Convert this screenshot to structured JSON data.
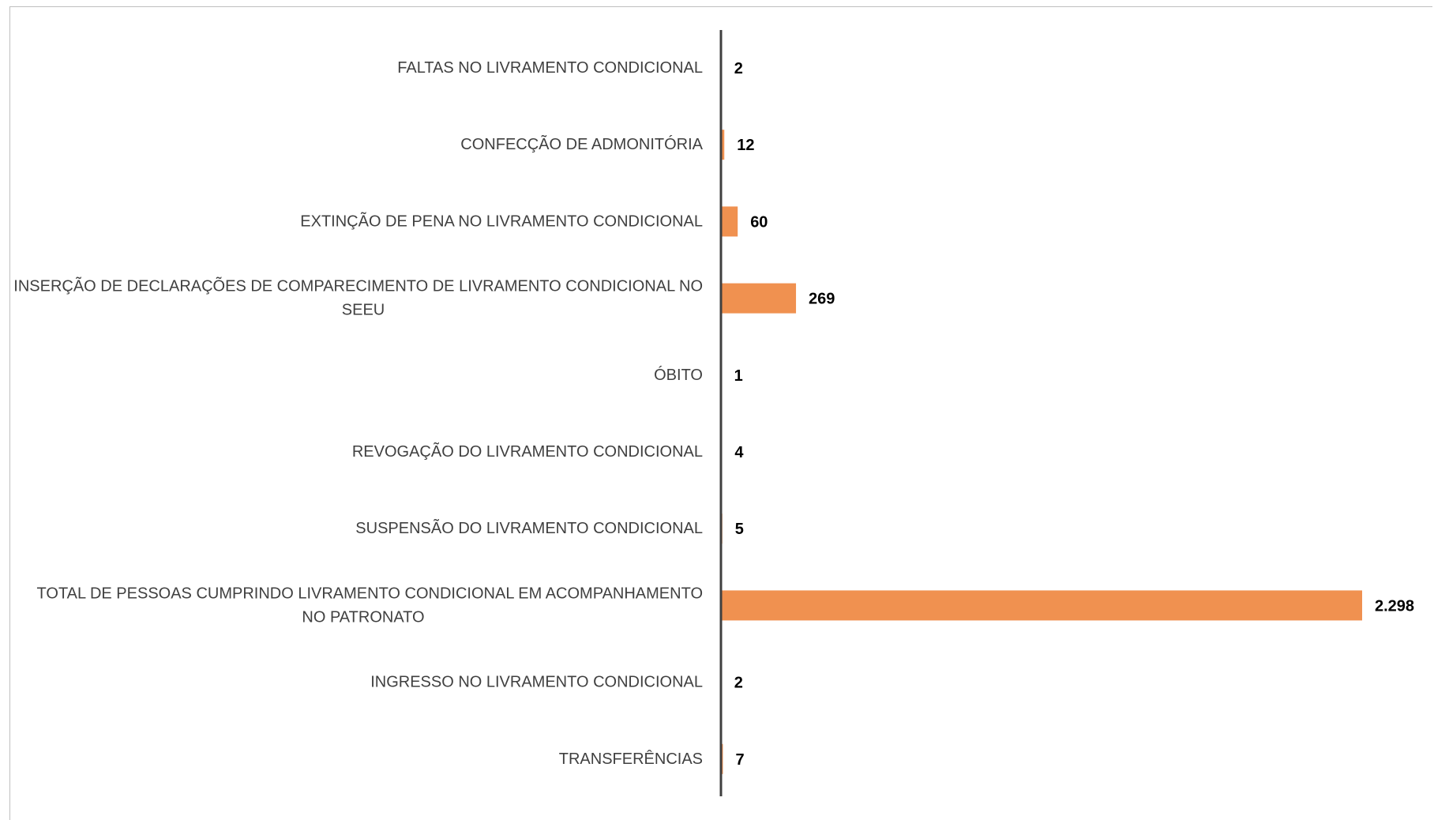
{
  "chart_data": {
    "type": "bar",
    "orientation": "horizontal",
    "categories": [
      [
        "FALTAS NO LIVRAMENTO CONDICIONAL"
      ],
      [
        "CONFECÇÃO DE ADMONITÓRIA"
      ],
      [
        "EXTINÇÃO DE PENA NO LIVRAMENTO CONDICIONAL"
      ],
      [
        "INSERÇÃO DE DECLARAÇÕES DE COMPARECIMENTO DE LIVRAMENTO CONDICIONAL NO",
        "SEEU"
      ],
      [
        "ÓBITO"
      ],
      [
        "REVOGAÇÃO DO LIVRAMENTO CONDICIONAL"
      ],
      [
        "SUSPENSÃO DO LIVRAMENTO CONDICIONAL"
      ],
      [
        "TOTAL DE PESSOAS CUMPRINDO LIVRAMENTO CONDICIONAL EM ACOMPANHAMENTO",
        "NO PATRONATO"
      ],
      [
        "INGRESSO NO LIVRAMENTO CONDICIONAL"
      ],
      [
        "TRANSFERÊNCIAS"
      ]
    ],
    "values": [
      2,
      12,
      60,
      269,
      1,
      4,
      5,
      2298,
      2,
      7
    ],
    "value_labels": [
      "2",
      "12",
      "60",
      "269",
      "1",
      "4",
      "5",
      "2.298",
      "2",
      "7"
    ],
    "xlim": [
      0,
      2298
    ],
    "grid": false,
    "bar_color": "#f09150",
    "axis_color": "#404040"
  }
}
